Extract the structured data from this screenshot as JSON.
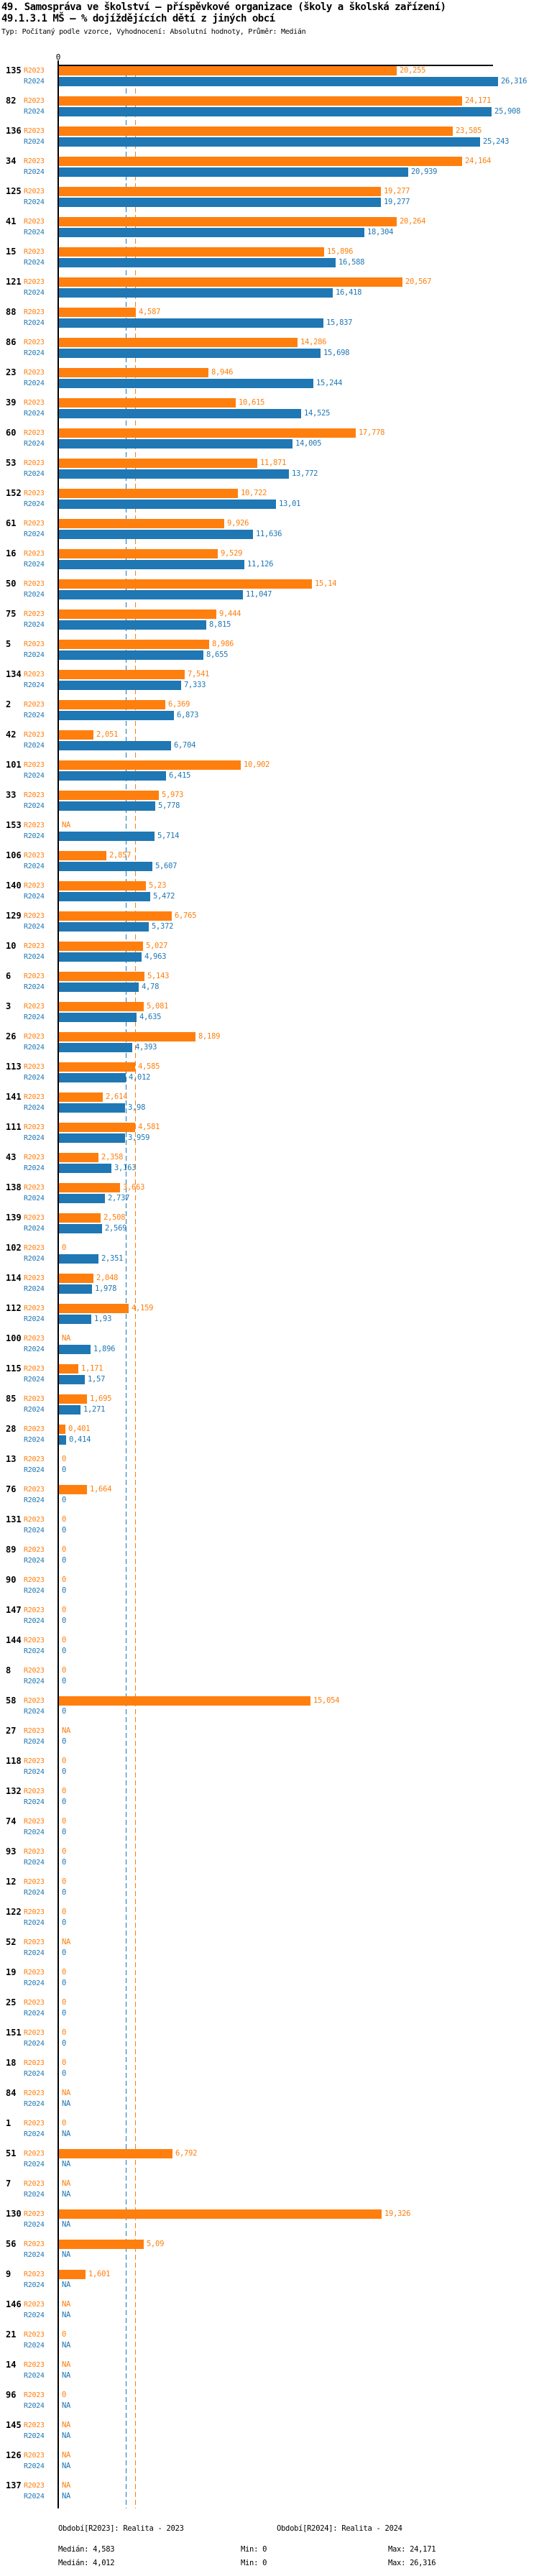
{
  "header": {
    "title": "49. Samospráva ve školství – příspěvkové organizace (školy a školská zařízení)",
    "subtitle": "49.1.3.1 MŠ – % dojíždějících dětí z jiných obcí",
    "meta": "Typ: Počítaný podle vzorce, Vyhodnocení: Absolutní hodnoty, Průměr: Medián"
  },
  "axis": {
    "zero_label": "0"
  },
  "colors": {
    "r2023": "#ff7f0e",
    "r2024": "#1f77b4",
    "axis": "#000000"
  },
  "chart_data": {
    "type": "bar",
    "orientation": "horizontal",
    "value_unit": "%",
    "xlim": [
      0,
      26.5
    ],
    "grid": false,
    "legend_position": "bottom",
    "na_text": "NA",
    "categories": [
      "135",
      "82",
      "136",
      "34",
      "125",
      "41",
      "15",
      "121",
      "88",
      "86",
      "23",
      "39",
      "60",
      "53",
      "152",
      "61",
      "16",
      "50",
      "75",
      "5",
      "134",
      "2",
      "42",
      "101",
      "33",
      "153",
      "106",
      "140",
      "129",
      "10",
      "6",
      "3",
      "26",
      "113",
      "141",
      "111",
      "43",
      "138",
      "139",
      "102",
      "114",
      "112",
      "100",
      "115",
      "85",
      "28",
      "13",
      "76",
      "131",
      "89",
      "90",
      "147",
      "144",
      "8",
      "58",
      "27",
      "118",
      "132",
      "74",
      "93",
      "12",
      "122",
      "52",
      "19",
      "25",
      "151",
      "18",
      "84",
      "1",
      "51",
      "7",
      "130",
      "56",
      "9",
      "146",
      "21",
      "14",
      "96",
      "145",
      "126",
      "137"
    ],
    "series": [
      {
        "name": "R2023",
        "color": "#ff7f0e",
        "values": [
          20.255,
          24.171,
          23.585,
          24.164,
          19.277,
          20.264,
          15.896,
          20.567,
          4.587,
          14.286,
          8.946,
          10.615,
          17.778,
          11.871,
          10.722,
          9.926,
          9.529,
          15.14,
          9.444,
          8.986,
          7.541,
          6.369,
          2.051,
          10.902,
          5.973,
          null,
          2.857,
          5.23,
          6.765,
          5.027,
          5.143,
          5.081,
          8.189,
          4.585,
          2.614,
          4.581,
          2.358,
          3.663,
          2.508,
          0,
          2.048,
          4.159,
          null,
          1.171,
          1.695,
          0.401,
          0,
          1.664,
          0,
          0,
          0,
          0,
          0,
          0,
          15.054,
          null,
          0,
          0,
          0,
          0,
          0,
          0,
          null,
          0,
          0,
          0,
          0,
          null,
          0,
          6.792,
          null,
          19.326,
          5.09,
          1.601,
          null,
          0,
          null,
          0,
          null,
          null,
          null
        ]
      },
      {
        "name": "R2024",
        "color": "#1f77b4",
        "values": [
          26.316,
          25.908,
          25.243,
          20.939,
          19.277,
          18.304,
          16.588,
          16.418,
          15.837,
          15.698,
          15.244,
          14.525,
          14.005,
          13.772,
          13.01,
          11.636,
          11.126,
          11.047,
          8.815,
          8.655,
          7.333,
          6.873,
          6.704,
          6.415,
          5.778,
          5.714,
          5.607,
          5.472,
          5.372,
          4.963,
          4.78,
          4.635,
          4.393,
          4.012,
          3.98,
          3.959,
          3.163,
          2.737,
          2.569,
          2.351,
          1.978,
          1.93,
          1.896,
          1.57,
          1.271,
          0.414,
          0,
          0,
          0,
          0,
          0,
          0,
          0,
          0,
          0,
          0,
          0,
          0,
          0,
          0,
          0,
          0,
          0,
          0,
          0,
          0,
          0,
          null,
          null,
          null,
          null,
          null,
          null,
          null,
          null,
          null,
          null,
          null,
          null,
          null,
          null
        ]
      }
    ],
    "medians": {
      "R2023": 4.583,
      "R2024": 4.012
    }
  },
  "legend": {
    "r2023": "Období[R2023]: Realita - 2023",
    "r2024": "Období[R2024]: Realita - 2024"
  },
  "stats": {
    "r2023": {
      "median": "Medián: 4,583",
      "min": "Min: 0",
      "max": "Max: 24,171"
    },
    "r2024": {
      "median": "Medián: 4,012",
      "min": "Min: 0",
      "max": "Max: 26,316"
    }
  }
}
